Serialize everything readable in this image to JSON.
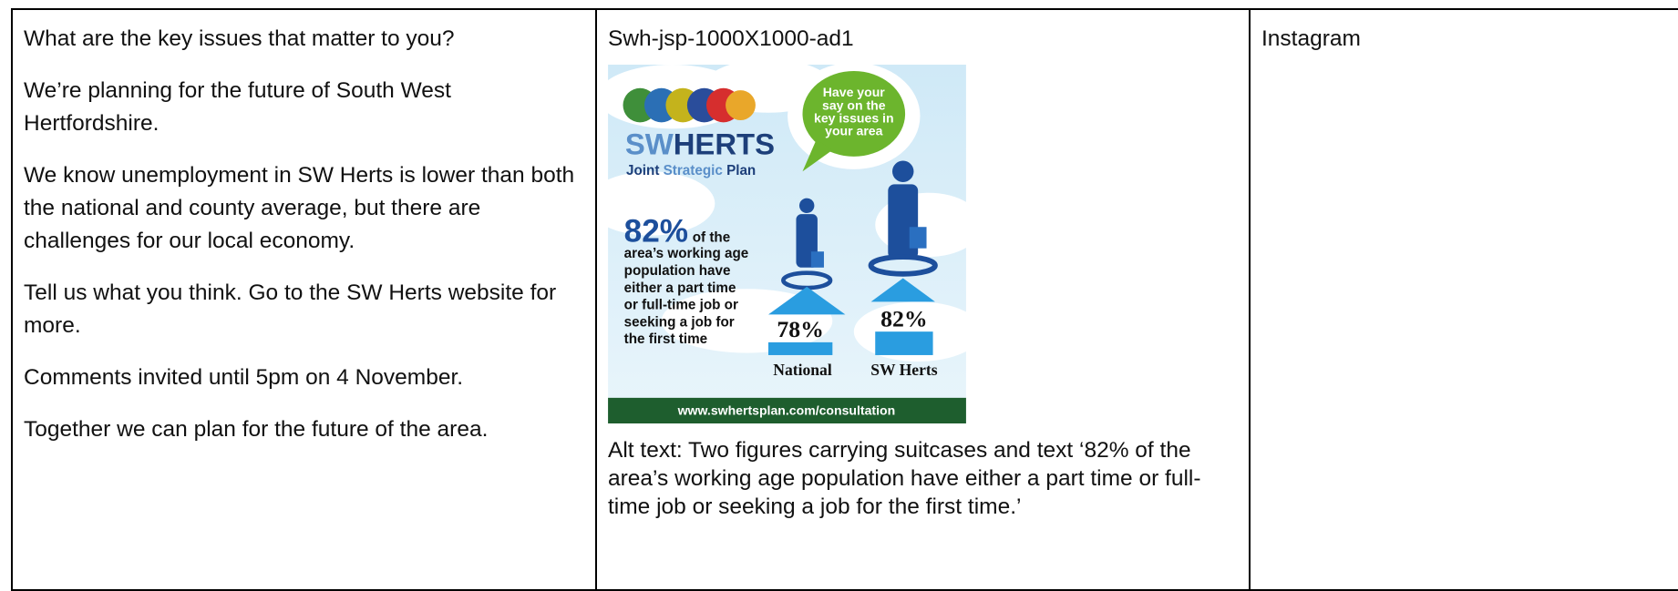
{
  "table": {
    "message": [
      "What are the key issues that matter to you?",
      "We’re planning for the future of South West Hertfordshire.",
      "We know unemployment in SW Herts is lower than both the national and county average, but there are challenges for our local economy.",
      "Tell us what you think. Go to the SW Herts website for more.",
      "Comments invited until 5pm on 4 November.",
      "Together we can plan for the future of the area."
    ],
    "asset": {
      "filename": "Swh-jsp-1000X1000-ad1",
      "image": {
        "bubble": [
          "Have your",
          "say on the",
          "key issues in",
          "your area"
        ],
        "logo_sw": "SW",
        "logo_herts": "HERTS",
        "logo_joint": "Joint",
        "logo_strategic": "Strategic",
        "logo_plan": "Plan",
        "headline_value": "82%",
        "headline_suffix": "of the",
        "headline_lines": [
          "area’s working age",
          "population have",
          "either a part time",
          "or full-time job or",
          "seeking a job for",
          "the first time"
        ],
        "national_value": "78%",
        "local_value": "82%",
        "national_label": "National",
        "local_label": "SW Herts",
        "url": "www.swhertsplan.com/consultation"
      },
      "alt_text": "Alt text: Two figures carrying suitcases and text ‘82% of the area’s working age population have either a part time or full-time job or seeking a job for the first time.’"
    },
    "channel": "Instagram"
  }
}
